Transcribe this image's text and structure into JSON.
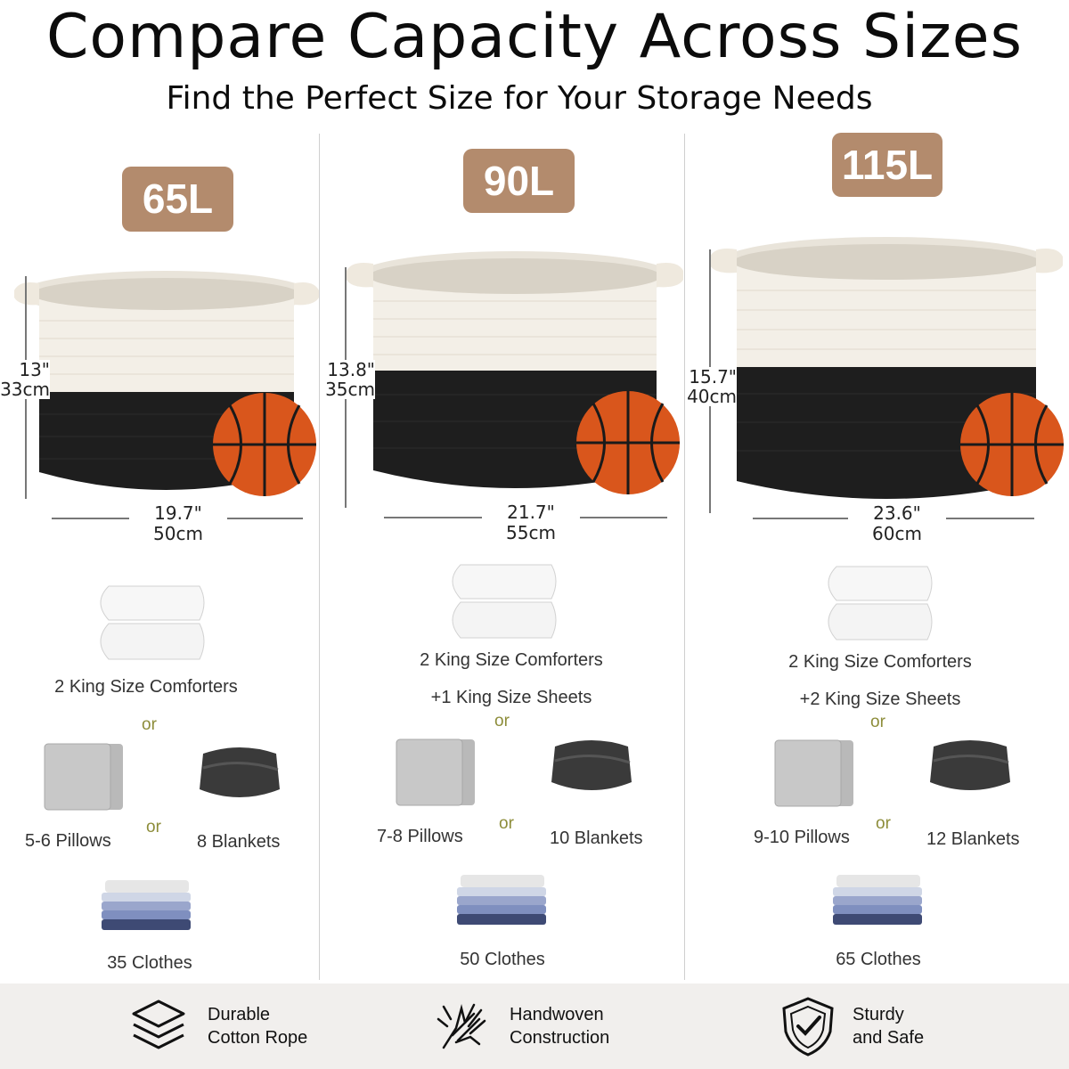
{
  "header": {
    "title": "Compare Capacity Across Sizes",
    "subtitle": "Find the Perfect Size for Your Storage Needs"
  },
  "colors": {
    "badge": "#b38b6d",
    "rope_white": "#f3efe7",
    "rope_black": "#1e1e1e",
    "ball": "#d9561c",
    "or_text": "#8d8d3a"
  },
  "columns": [
    {
      "capacity": "65L",
      "height_in": "13\"",
      "height_cm": "33cm",
      "width_in": "19.7\"",
      "width_cm": "50cm",
      "comforters": "2 King Size Comforters",
      "sheets": "",
      "or1": "or",
      "pillows": "5-6 Pillows",
      "or2": "or",
      "blankets": "8 Blankets",
      "clothes": "35 Clothes"
    },
    {
      "capacity": "90L",
      "height_in": "13.8\"",
      "height_cm": "35cm",
      "width_in": "21.7\"",
      "width_cm": "55cm",
      "comforters": "2 King Size Comforters",
      "sheets": "+1 King Size Sheets",
      "or1": "or",
      "pillows": "7-8 Pillows",
      "or2": "or",
      "blankets": "10 Blankets",
      "clothes": "50 Clothes"
    },
    {
      "capacity": "115L",
      "height_in": "15.7\"",
      "height_cm": "40cm",
      "width_in": "23.6\"",
      "width_cm": "60cm",
      "comforters": "2 King Size Comforters",
      "sheets": "+2 King Size Sheets",
      "or1": "or",
      "pillows": "9-10 Pillows",
      "or2": "or",
      "blankets": "12 Blankets",
      "clothes": "65 Clothes"
    }
  ],
  "features": [
    {
      "icon": "layers-icon",
      "line1": "Durable",
      "line2": "Cotton Rope"
    },
    {
      "icon": "hands-weaving-icon",
      "line1": "Handwoven",
      "line2": "Construction"
    },
    {
      "icon": "shield-check-icon",
      "line1": "Sturdy",
      "line2": "and Safe"
    }
  ]
}
